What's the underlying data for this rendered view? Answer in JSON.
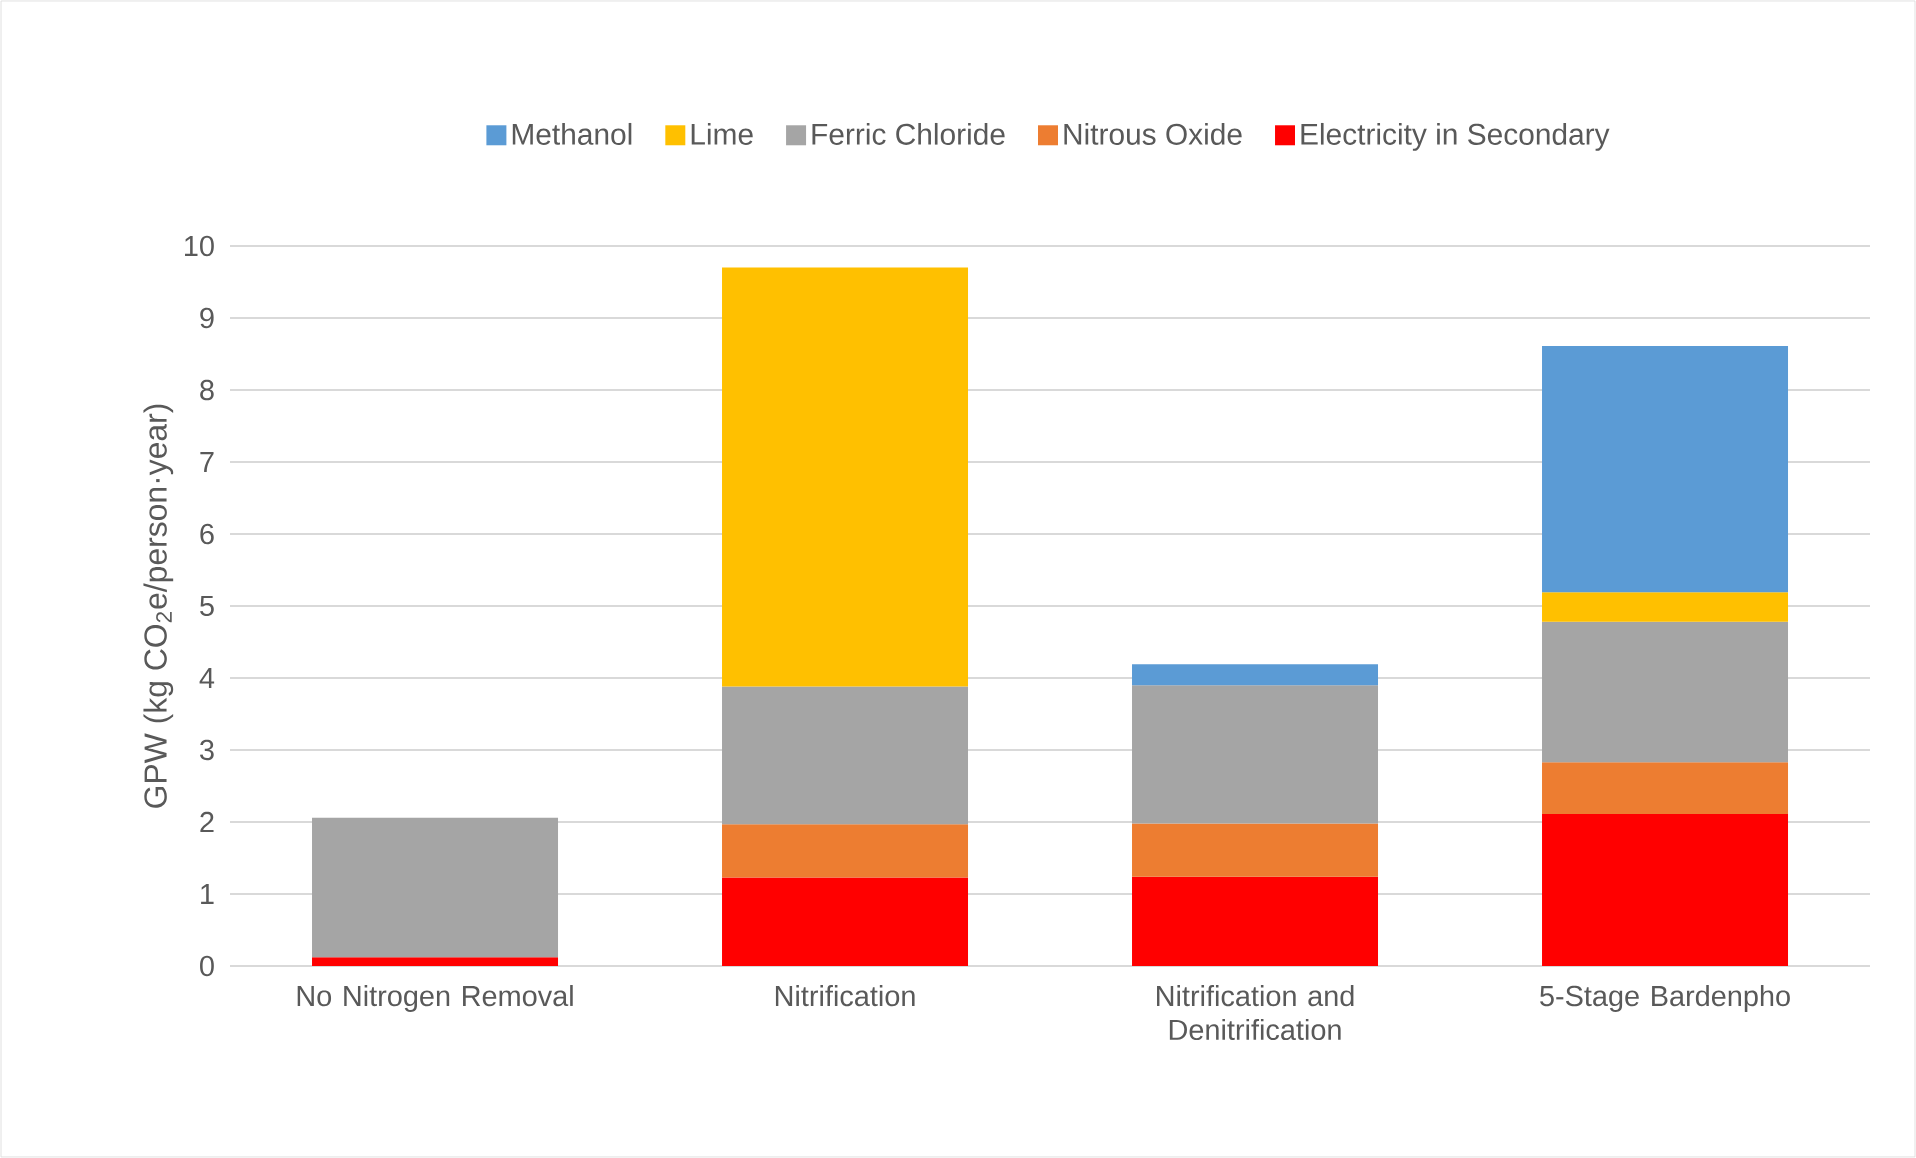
{
  "chart_data": {
    "type": "bar",
    "stacked": true,
    "ylabel": "GPW (kg CO$_{2}$e/person·year)",
    "categories": [
      "No Nitrogen Removal",
      "Nitrification",
      "Nitrification and Denitrification",
      "5-Stage Bardenpho"
    ],
    "series": [
      {
        "name": "Electricity in Secondary",
        "color": "#ff0000",
        "values": [
          0.12,
          1.23,
          1.24,
          2.11
        ]
      },
      {
        "name": "Nitrous Oxide",
        "color": "#ed7d31",
        "values": [
          null,
          0.74,
          0.74,
          0.72
        ]
      },
      {
        "name": "Ferric Chloride",
        "color": "#a5a5a5",
        "values": [
          1.94,
          1.91,
          1.92,
          1.95
        ]
      },
      {
        "name": "Lime",
        "color": "#ffc000",
        "values": [
          null,
          5.82,
          null,
          0.41
        ]
      },
      {
        "name": "Methanol",
        "color": "#5b9bd5",
        "values": [
          null,
          null,
          0.29,
          3.42
        ]
      }
    ],
    "ylim": [
      0,
      10
    ],
    "yticks": [
      0,
      1,
      2,
      3,
      4,
      5,
      6,
      7,
      8,
      9,
      10
    ],
    "grid": "y",
    "legend": "top"
  }
}
